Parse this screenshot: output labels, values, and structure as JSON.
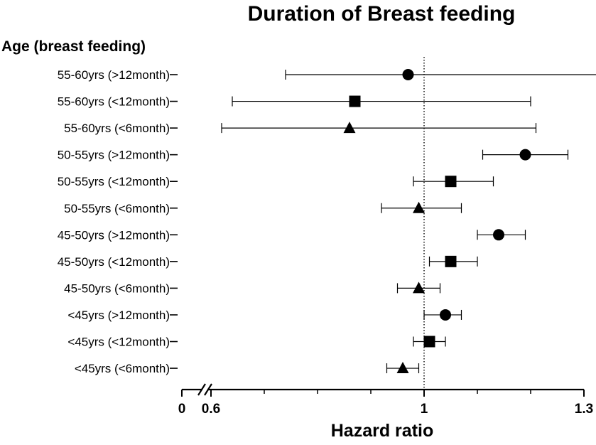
{
  "chart_data": {
    "type": "forest",
    "title": "Duration of Breast feeding",
    "subtitle": "Age (breast feeding)",
    "xlabel": "Hazard ratio",
    "reference_line": 1.0,
    "axis_break": true,
    "xlim": [
      0.6,
      1.3
    ],
    "ticks": [
      {
        "value": 0,
        "label": "0"
      },
      {
        "value": 0.6,
        "label": "0.6"
      },
      {
        "value": 1.0,
        "label": "1"
      },
      {
        "value": 1.3,
        "label": "1.3"
      }
    ],
    "rows": [
      {
        "label": "55-60yrs (>12month)",
        "estimate": 0.97,
        "lower": 0.74,
        "upper": 1.33,
        "marker": "circle"
      },
      {
        "label": "55-60yrs (<12month)",
        "estimate": 0.87,
        "lower": 0.64,
        "upper": 1.2,
        "marker": "square"
      },
      {
        "label": "55-60yrs (<6month)",
        "estimate": 0.86,
        "lower": 0.62,
        "upper": 1.21,
        "marker": "triangle"
      },
      {
        "label": "50-55yrs (>12month)",
        "estimate": 1.19,
        "lower": 1.11,
        "upper": 1.27,
        "marker": "circle"
      },
      {
        "label": "50-55yrs (<12month)",
        "estimate": 1.05,
        "lower": 0.98,
        "upper": 1.13,
        "marker": "square"
      },
      {
        "label": "50-55yrs (<6month)",
        "estimate": 0.99,
        "lower": 0.92,
        "upper": 1.07,
        "marker": "triangle"
      },
      {
        "label": "45-50yrs (>12month)",
        "estimate": 1.14,
        "lower": 1.1,
        "upper": 1.19,
        "marker": "circle"
      },
      {
        "label": "45-50yrs (<12month)",
        "estimate": 1.05,
        "lower": 1.01,
        "upper": 1.1,
        "marker": "square"
      },
      {
        "label": "45-50yrs (<6month)",
        "estimate": 0.99,
        "lower": 0.95,
        "upper": 1.03,
        "marker": "triangle"
      },
      {
        "label": "<45yrs (>12month)",
        "estimate": 1.04,
        "lower": 1.0,
        "upper": 1.07,
        "marker": "circle"
      },
      {
        "label": "<45yrs (<12month)",
        "estimate": 1.01,
        "lower": 0.98,
        "upper": 1.04,
        "marker": "square"
      },
      {
        "label": "<45yrs (<6month)",
        "estimate": 0.96,
        "lower": 0.93,
        "upper": 0.99,
        "marker": "triangle"
      }
    ]
  }
}
